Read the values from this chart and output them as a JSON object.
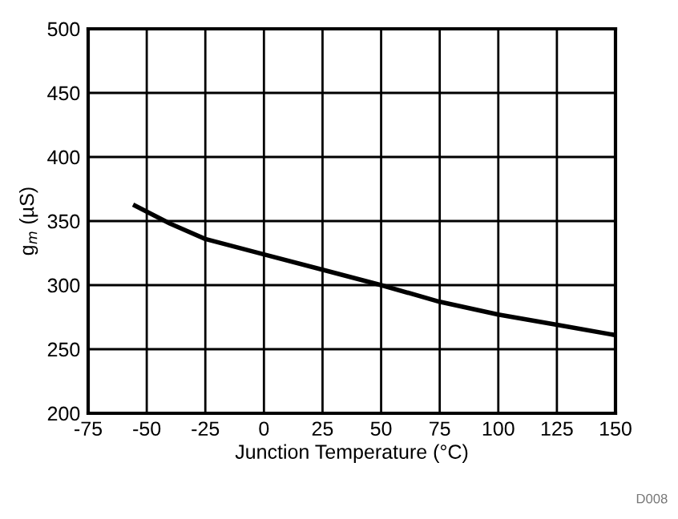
{
  "chart_data": {
    "type": "line",
    "xlabel": "Junction Temperature (°C)",
    "ylabel": "g$_{m}$ (µS)",
    "x": [
      -55,
      -40,
      -25,
      0,
      25,
      50,
      75,
      100,
      125,
      150
    ],
    "series": [
      {
        "color": "#000000",
        "values": [
          362,
          348,
          336,
          324,
          312,
          300,
          287,
          277,
          269,
          261
        ]
      }
    ],
    "xlim": [
      -75,
      150
    ],
    "xticks": [
      -75,
      -50,
      -25,
      0,
      25,
      50,
      75,
      100,
      125,
      150
    ],
    "ylim": [
      200,
      500
    ],
    "yticks": [
      200,
      250,
      300,
      350,
      400,
      450,
      500
    ],
    "grid": true,
    "annotations": [
      "D008"
    ]
  }
}
